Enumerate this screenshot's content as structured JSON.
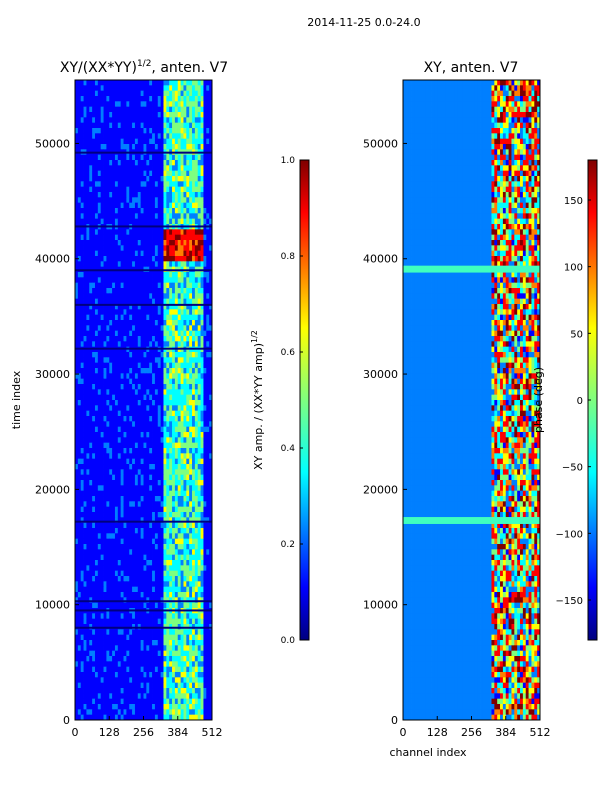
{
  "figure": {
    "suptitle": "2014-11-25 0.0-24.0"
  },
  "chart_data": [
    {
      "type": "heatmap",
      "title": "XY/(XX*YY)",
      "title_exponent": "1/2",
      "title_suffix": ", anten. V7",
      "xlabel": "",
      "ylabel": "time index",
      "x_ticks": [
        0,
        128,
        256,
        384,
        512
      ],
      "y_ticks": [
        0,
        10000,
        20000,
        30000,
        40000,
        50000
      ],
      "xlim": [
        0,
        512
      ],
      "ylim": [
        0,
        55500
      ],
      "active_channel_range": [
        330,
        480
      ],
      "bright_time_band": [
        39800,
        42500
      ],
      "dark_time_rows": [
        8000,
        9500,
        10300,
        17200,
        32200,
        36000,
        39000,
        42800,
        49200
      ],
      "colorbar": {
        "label": "XY amp. / (XX*YY amp)",
        "label_exponent": "1/2",
        "range": [
          0.0,
          1.0
        ],
        "ticks": [
          "0.0",
          "0.2",
          "0.4",
          "0.6",
          "0.8",
          "1.0"
        ]
      }
    },
    {
      "type": "heatmap",
      "title": "XY, anten. V7",
      "xlabel": "channel index",
      "ylabel": "",
      "x_ticks": [
        0,
        128,
        256,
        384,
        512
      ],
      "y_ticks": [
        0,
        10000,
        20000,
        30000,
        40000,
        50000
      ],
      "xlim": [
        0,
        512
      ],
      "ylim": [
        0,
        55500
      ],
      "active_channel_range": [
        330,
        512
      ],
      "cyan_time_bands": [
        [
          17000,
          17600
        ],
        [
          38800,
          39400
        ]
      ],
      "colorbar": {
        "label": "phase (deg)",
        "range": [
          -180,
          180
        ],
        "ticks": [
          "−150",
          "−100",
          "−50",
          "0",
          "50",
          "100",
          "150"
        ]
      }
    }
  ],
  "colors": {
    "jet": [
      "#00007f",
      "#0000ff",
      "#007fff",
      "#00ffff",
      "#7fff7f",
      "#ffff00",
      "#ff7f00",
      "#ff0000",
      "#7f0000"
    ],
    "axis": "#000000",
    "background": "#ffffff"
  }
}
